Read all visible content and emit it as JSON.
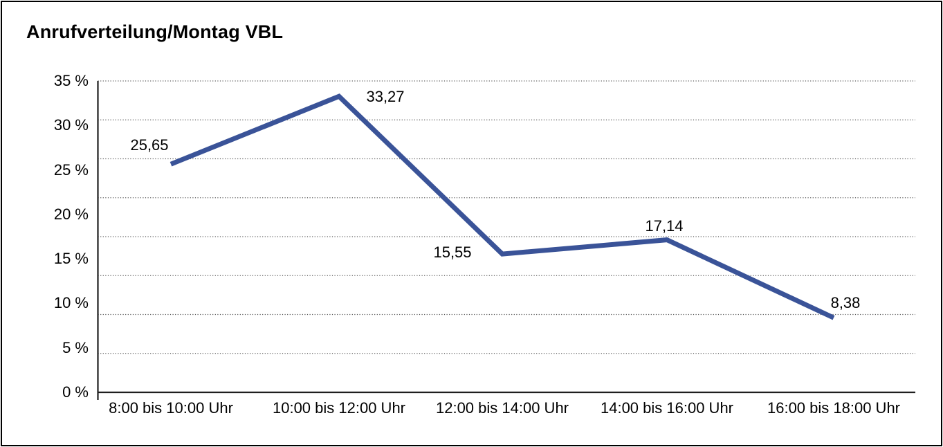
{
  "title": "Anrufverteilung/Montag VBL",
  "chart_data": {
    "type": "line",
    "title": "Anrufverteilung/Montag VBL",
    "categories": [
      "8:00 bis 10:00 Uhr",
      "10:00 bis 12:00 Uhr",
      "12:00 bis 14:00 Uhr",
      "14:00 bis 16:00 Uhr",
      "16:00 bis 18:00 Uhr"
    ],
    "values": [
      25.65,
      33.27,
      15.55,
      17.14,
      8.38
    ],
    "value_labels": [
      "25,65",
      "33,27",
      "15,55",
      "17,14",
      "8,38"
    ],
    "y_tick_labels": [
      "35 %",
      "30 %",
      "25 %",
      "20 %",
      "15 %",
      "10 %",
      "5 %",
      "0 %"
    ],
    "ylim": [
      0,
      35
    ],
    "xlabel": "",
    "ylabel": "",
    "grid": "horizontal dotted",
    "legend": "none",
    "line_color": "#3A5398",
    "axis_color": "#1F1F1F",
    "grid_color": "#5A5A5A",
    "text_color": "#000000",
    "background": "#FFFFFF"
  }
}
